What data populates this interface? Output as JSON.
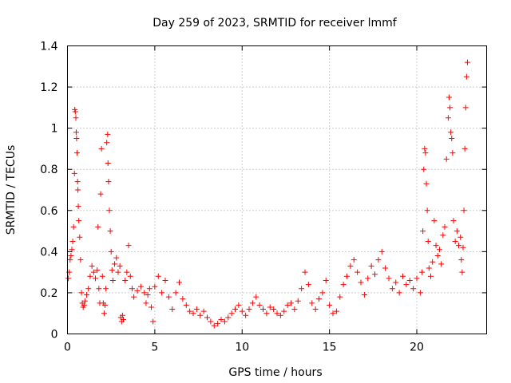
{
  "chart_data": {
    "type": "scatter",
    "title": "Day 259 of 2023, SRMTID for receiver lmmf",
    "xlabel": "GPS time / hours",
    "ylabel": "SRMTID / TECUs",
    "xlim": [
      0,
      24
    ],
    "ylim": [
      0,
      1.4
    ],
    "xticks": [
      0,
      5,
      10,
      15,
      20
    ],
    "yticks": [
      0,
      0.2,
      0.4,
      0.6,
      0.8,
      1,
      1.2,
      1.4
    ],
    "xtick_labels": [
      "0",
      "5",
      "10",
      "15",
      "20"
    ],
    "ytick_labels": [
      "0",
      "0.2",
      "0.4",
      "0.6",
      "0.8",
      "1",
      "1.2",
      "1.4"
    ],
    "grid": true,
    "marker": "+",
    "color": "#ff0000",
    "series": [
      {
        "name": "SRMTID",
        "points": [
          [
            0.05,
            0.27
          ],
          [
            0.1,
            0.3
          ],
          [
            0.15,
            0.36
          ],
          [
            0.2,
            0.38
          ],
          [
            0.25,
            0.41
          ],
          [
            0.3,
            0.45
          ],
          [
            0.35,
            0.52
          ],
          [
            0.4,
            0.78
          ],
          [
            0.42,
            1.09
          ],
          [
            0.45,
            1.08
          ],
          [
            0.48,
            1.05
          ],
          [
            0.5,
            0.98
          ],
          [
            0.52,
            0.95
          ],
          [
            0.55,
            0.88
          ],
          [
            0.58,
            0.74
          ],
          [
            0.6,
            0.7
          ],
          [
            0.62,
            0.62
          ],
          [
            0.65,
            0.55
          ],
          [
            0.7,
            0.47
          ],
          [
            0.75,
            0.36
          ],
          [
            0.8,
            0.2
          ],
          [
            0.85,
            0.15
          ],
          [
            0.9,
            0.13
          ],
          [
            0.95,
            0.14
          ],
          [
            1.0,
            0.16
          ],
          [
            1.1,
            0.19
          ],
          [
            1.2,
            0.22
          ],
          [
            1.3,
            0.28
          ],
          [
            1.4,
            0.33
          ],
          [
            1.5,
            0.3
          ],
          [
            1.6,
            0.27
          ],
          [
            1.7,
            0.31
          ],
          [
            1.75,
            0.52
          ],
          [
            1.8,
            0.22
          ],
          [
            1.85,
            0.15
          ],
          [
            1.9,
            0.68
          ],
          [
            1.95,
            0.9
          ],
          [
            2.0,
            0.28
          ],
          [
            2.05,
            0.15
          ],
          [
            2.1,
            0.1
          ],
          [
            2.15,
            0.14
          ],
          [
            2.2,
            0.22
          ],
          [
            2.25,
            0.93
          ],
          [
            2.3,
            0.97
          ],
          [
            2.32,
            0.83
          ],
          [
            2.35,
            0.74
          ],
          [
            2.4,
            0.6
          ],
          [
            2.45,
            0.5
          ],
          [
            2.5,
            0.4
          ],
          [
            2.55,
            0.31
          ],
          [
            2.6,
            0.26
          ],
          [
            2.7,
            0.34
          ],
          [
            2.8,
            0.37
          ],
          [
            2.9,
            0.3
          ],
          [
            3.0,
            0.33
          ],
          [
            3.05,
            0.08
          ],
          [
            3.1,
            0.06
          ],
          [
            3.15,
            0.09
          ],
          [
            3.2,
            0.07
          ],
          [
            3.3,
            0.26
          ],
          [
            3.4,
            0.3
          ],
          [
            3.5,
            0.43
          ],
          [
            3.6,
            0.28
          ],
          [
            3.7,
            0.22
          ],
          [
            3.8,
            0.18
          ],
          [
            4.0,
            0.21
          ],
          [
            4.2,
            0.23
          ],
          [
            4.4,
            0.2
          ],
          [
            4.5,
            0.15
          ],
          [
            4.6,
            0.19
          ],
          [
            4.7,
            0.22
          ],
          [
            4.8,
            0.13
          ],
          [
            4.9,
            0.06
          ],
          [
            5.0,
            0.23
          ],
          [
            5.2,
            0.28
          ],
          [
            5.4,
            0.2
          ],
          [
            5.6,
            0.26
          ],
          [
            5.8,
            0.18
          ],
          [
            6.0,
            0.12
          ],
          [
            6.2,
            0.2
          ],
          [
            6.4,
            0.25
          ],
          [
            6.6,
            0.17
          ],
          [
            6.8,
            0.14
          ],
          [
            7.0,
            0.11
          ],
          [
            7.2,
            0.1
          ],
          [
            7.4,
            0.12
          ],
          [
            7.6,
            0.09
          ],
          [
            7.8,
            0.11
          ],
          [
            8.0,
            0.08
          ],
          [
            8.2,
            0.06
          ],
          [
            8.4,
            0.04
          ],
          [
            8.6,
            0.05
          ],
          [
            8.8,
            0.07
          ],
          [
            9.0,
            0.06
          ],
          [
            9.2,
            0.08
          ],
          [
            9.4,
            0.1
          ],
          [
            9.6,
            0.12
          ],
          [
            9.8,
            0.14
          ],
          [
            10.0,
            0.11
          ],
          [
            10.2,
            0.09
          ],
          [
            10.4,
            0.12
          ],
          [
            10.6,
            0.15
          ],
          [
            10.8,
            0.18
          ],
          [
            11.0,
            0.14
          ],
          [
            11.2,
            0.12
          ],
          [
            11.4,
            0.1
          ],
          [
            11.6,
            0.13
          ],
          [
            11.8,
            0.12
          ],
          [
            12.0,
            0.1
          ],
          [
            12.2,
            0.09
          ],
          [
            12.4,
            0.11
          ],
          [
            12.6,
            0.14
          ],
          [
            12.8,
            0.15
          ],
          [
            13.0,
            0.12
          ],
          [
            13.2,
            0.16
          ],
          [
            13.4,
            0.22
          ],
          [
            13.6,
            0.3
          ],
          [
            13.8,
            0.24
          ],
          [
            14.0,
            0.15
          ],
          [
            14.2,
            0.12
          ],
          [
            14.4,
            0.17
          ],
          [
            14.6,
            0.2
          ],
          [
            14.8,
            0.26
          ],
          [
            15.0,
            0.14
          ],
          [
            15.2,
            0.1
          ],
          [
            15.4,
            0.11
          ],
          [
            15.6,
            0.18
          ],
          [
            15.8,
            0.24
          ],
          [
            16.0,
            0.28
          ],
          [
            16.2,
            0.33
          ],
          [
            16.4,
            0.36
          ],
          [
            16.6,
            0.3
          ],
          [
            16.8,
            0.25
          ],
          [
            17.0,
            0.19
          ],
          [
            17.2,
            0.27
          ],
          [
            17.4,
            0.33
          ],
          [
            17.6,
            0.29
          ],
          [
            17.8,
            0.36
          ],
          [
            18.0,
            0.4
          ],
          [
            18.2,
            0.32
          ],
          [
            18.4,
            0.27
          ],
          [
            18.6,
            0.22
          ],
          [
            18.8,
            0.25
          ],
          [
            19.0,
            0.2
          ],
          [
            19.2,
            0.28
          ],
          [
            19.4,
            0.24
          ],
          [
            19.6,
            0.26
          ],
          [
            19.8,
            0.22
          ],
          [
            20.0,
            0.27
          ],
          [
            20.2,
            0.2
          ],
          [
            20.3,
            0.3
          ],
          [
            20.35,
            0.5
          ],
          [
            20.4,
            0.8
          ],
          [
            20.45,
            0.9
          ],
          [
            20.5,
            0.88
          ],
          [
            20.55,
            0.73
          ],
          [
            20.6,
            0.6
          ],
          [
            20.65,
            0.45
          ],
          [
            20.7,
            0.32
          ],
          [
            20.8,
            0.28
          ],
          [
            20.9,
            0.35
          ],
          [
            21.0,
            0.55
          ],
          [
            21.1,
            0.43
          ],
          [
            21.2,
            0.38
          ],
          [
            21.3,
            0.41
          ],
          [
            21.4,
            0.34
          ],
          [
            21.5,
            0.48
          ],
          [
            21.6,
            0.52
          ],
          [
            21.7,
            0.85
          ],
          [
            21.8,
            1.05
          ],
          [
            21.85,
            1.15
          ],
          [
            21.9,
            1.1
          ],
          [
            21.95,
            0.98
          ],
          [
            22.0,
            0.95
          ],
          [
            22.05,
            0.88
          ],
          [
            22.1,
            0.55
          ],
          [
            22.2,
            0.45
          ],
          [
            22.3,
            0.5
          ],
          [
            22.4,
            0.43
          ],
          [
            22.5,
            0.47
          ],
          [
            22.55,
            0.36
          ],
          [
            22.6,
            0.3
          ],
          [
            22.65,
            0.42
          ],
          [
            22.7,
            0.6
          ],
          [
            22.75,
            0.9
          ],
          [
            22.8,
            1.1
          ],
          [
            22.85,
            1.25
          ],
          [
            22.9,
            1.32
          ]
        ]
      }
    ]
  }
}
